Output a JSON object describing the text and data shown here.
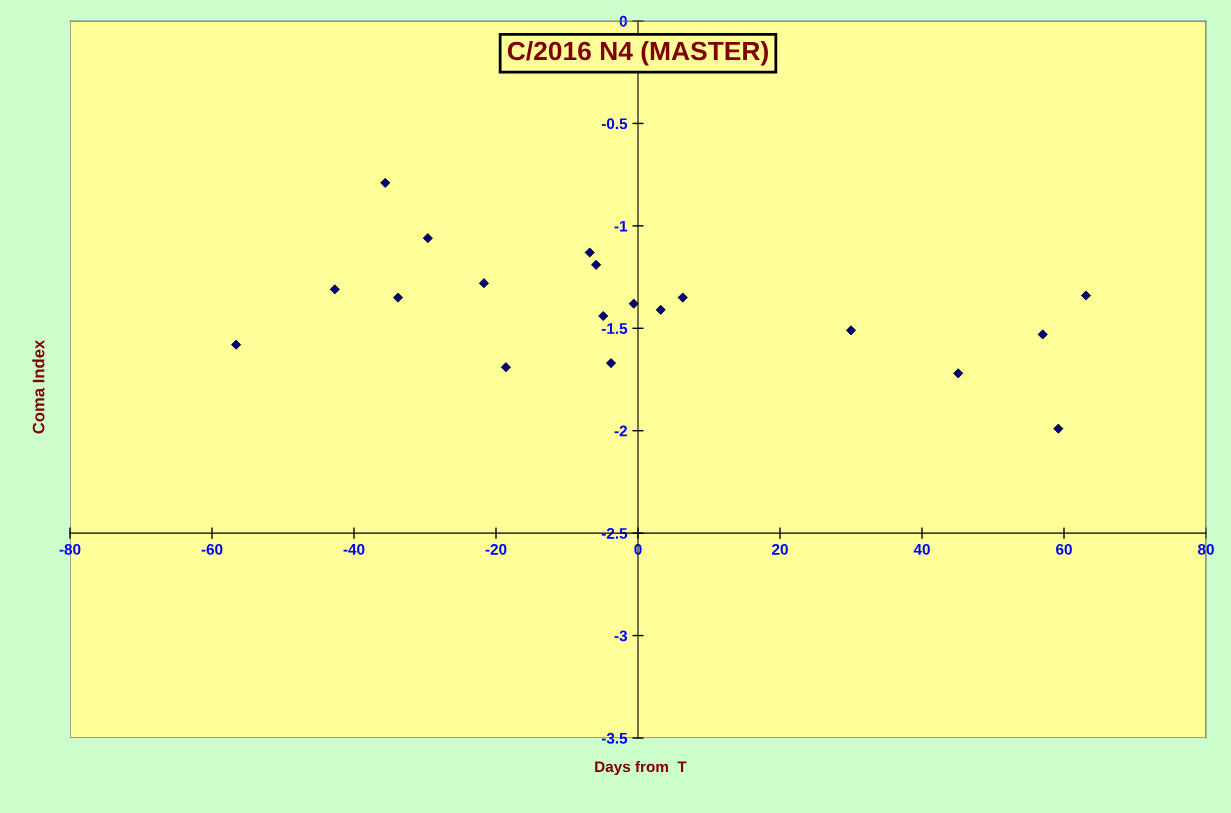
{
  "chart_data": {
    "type": "scatter",
    "title": "C/2016 N4 (MASTER)",
    "xlabel": "Days from  T",
    "ylabel": "Coma Index",
    "x": [
      -56.6,
      -42.7,
      -35.6,
      -33.8,
      -29.6,
      -21.7,
      -18.6,
      -6.8,
      -5.9,
      -4.9,
      -3.8,
      -0.6,
      3.2,
      6.3,
      30.0,
      45.1,
      57.0,
      59.2,
      63.1
    ],
    "series": [
      {
        "color": "#000080",
        "values": [
          -1.58,
          -1.31,
          -0.79,
          -1.35,
          -1.06,
          -1.28,
          -1.69,
          -1.13,
          -1.19,
          -1.44,
          -1.67,
          -1.38,
          -1.41,
          -1.35,
          -1.51,
          -1.72,
          -1.53,
          -1.99,
          -1.34
        ]
      }
    ],
    "xlim": [
      -80,
      80
    ],
    "xticks": [
      -80,
      -60,
      -40,
      -20,
      0,
      20,
      40,
      60,
      80
    ],
    "ylim": [
      -3.5,
      0
    ],
    "yticks": [
      0,
      -0.5,
      -1,
      -1.5,
      -2,
      -2.5,
      -3,
      -3.5
    ],
    "marker": "diamond",
    "grid": false,
    "legend": false
  }
}
